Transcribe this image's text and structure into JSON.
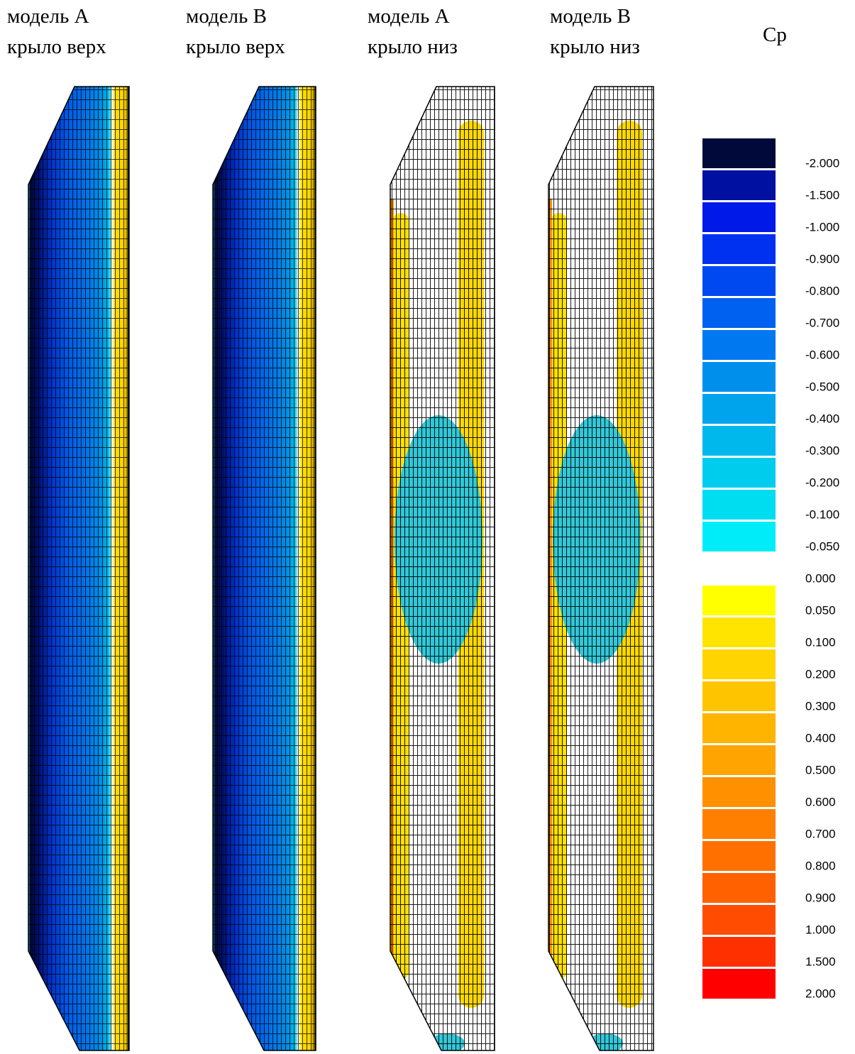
{
  "panels": [
    {
      "model": "модель А",
      "surface": "крыло верх"
    },
    {
      "model": "модель В",
      "surface": "крыло верх"
    },
    {
      "model": "модель А",
      "surface": "крыло низ"
    },
    {
      "model": "модель В",
      "surface": "крыло низ"
    }
  ],
  "legend": {
    "title": "Cp",
    "entries": [
      {
        "label": "-2.000",
        "color": "#000a3a"
      },
      {
        "label": "-1.500",
        "color": "#0010a0"
      },
      {
        "label": "-1.000",
        "color": "#0018e8"
      },
      {
        "label": "-0.900",
        "color": "#0030f0"
      },
      {
        "label": "-0.800",
        "color": "#0048f0"
      },
      {
        "label": "-0.700",
        "color": "#0060f0"
      },
      {
        "label": "-0.600",
        "color": "#0078f0"
      },
      {
        "label": "-0.500",
        "color": "#0090ec"
      },
      {
        "label": "-0.400",
        "color": "#00a4ec"
      },
      {
        "label": "-0.300",
        "color": "#00b8ec"
      },
      {
        "label": "-0.200",
        "color": "#00ccee"
      },
      {
        "label": "-0.100",
        "color": "#00dcf0"
      },
      {
        "label": "-0.050",
        "color": "#00ecf8"
      },
      {
        "label": "0.000",
        "color": "#ffffff"
      },
      {
        "label": "0.050",
        "color": "#ffff00"
      },
      {
        "label": "0.100",
        "color": "#ffe400"
      },
      {
        "label": "0.200",
        "color": "#ffd400"
      },
      {
        "label": "0.300",
        "color": "#ffc400"
      },
      {
        "label": "0.400",
        "color": "#ffb400"
      },
      {
        "label": "0.500",
        "color": "#ffa400"
      },
      {
        "label": "0.600",
        "color": "#ff9000"
      },
      {
        "label": "0.700",
        "color": "#ff8000"
      },
      {
        "label": "0.800",
        "color": "#ff7000"
      },
      {
        "label": "0.900",
        "color": "#ff6000"
      },
      {
        "label": "1.000",
        "color": "#ff4c00"
      },
      {
        "label": "1.500",
        "color": "#ff3000"
      },
      {
        "label": "2.000",
        "color": "#ff0000"
      }
    ]
  }
}
